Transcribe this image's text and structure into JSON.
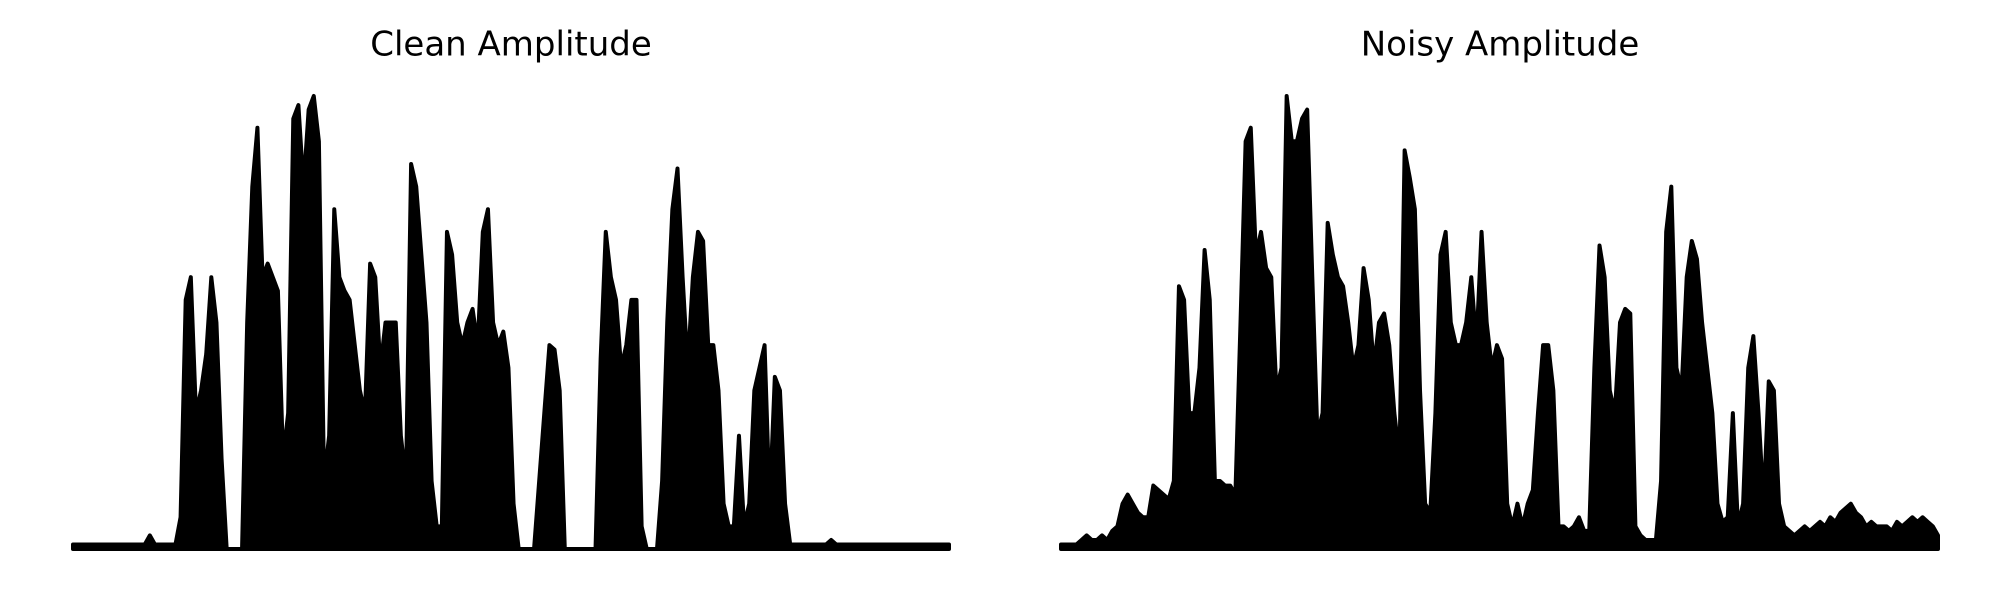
{
  "chart_data": [
    {
      "type": "area",
      "title": "Clean Amplitude",
      "color": "#000000",
      "ylim": [
        0,
        1
      ],
      "values": [
        0.01,
        0.01,
        0.01,
        0.01,
        0.01,
        0.01,
        0.01,
        0.01,
        0.01,
        0.01,
        0.01,
        0.01,
        0.01,
        0.01,
        0.01,
        0.03,
        0.01,
        0.01,
        0.01,
        0.01,
        0.01,
        0.07,
        0.55,
        0.6,
        0.3,
        0.35,
        0.43,
        0.6,
        0.5,
        0.2,
        0.0,
        0.0,
        0.0,
        0.0,
        0.5,
        0.8,
        0.93,
        0.6,
        0.63,
        0.6,
        0.57,
        0.2,
        0.3,
        0.95,
        0.98,
        0.8,
        0.97,
        1.0,
        0.9,
        0.15,
        0.25,
        0.75,
        0.6,
        0.57,
        0.55,
        0.45,
        0.35,
        0.3,
        0.63,
        0.6,
        0.4,
        0.5,
        0.5,
        0.5,
        0.25,
        0.15,
        0.85,
        0.8,
        0.65,
        0.5,
        0.15,
        0.05,
        0.05,
        0.7,
        0.65,
        0.5,
        0.45,
        0.5,
        0.53,
        0.45,
        0.7,
        0.75,
        0.5,
        0.45,
        0.48,
        0.4,
        0.1,
        0.0,
        0.0,
        0.0,
        0.0,
        0.15,
        0.3,
        0.45,
        0.44,
        0.35,
        0.0,
        0.0,
        0.0,
        0.0,
        0.0,
        0.0,
        0.0,
        0.42,
        0.7,
        0.6,
        0.55,
        0.4,
        0.45,
        0.55,
        0.55,
        0.05,
        0.0,
        0.0,
        0.0,
        0.15,
        0.5,
        0.75,
        0.84,
        0.6,
        0.4,
        0.6,
        0.7,
        0.68,
        0.45,
        0.45,
        0.35,
        0.1,
        0.05,
        0.05,
        0.25,
        0.05,
        0.1,
        0.35,
        0.4,
        0.45,
        0.1,
        0.38,
        0.35,
        0.1,
        0.01,
        0.01,
        0.01,
        0.01,
        0.01,
        0.01,
        0.01,
        0.01,
        0.02,
        0.01,
        0.01,
        0.01,
        0.01,
        0.01,
        0.01,
        0.01,
        0.01,
        0.01,
        0.01,
        0.01,
        0.01,
        0.01,
        0.01,
        0.01,
        0.01,
        0.01,
        0.01,
        0.01,
        0.01,
        0.01,
        0.01,
        0.01
      ]
    },
    {
      "type": "area",
      "title": "Noisy Amplitude",
      "color": "#000000",
      "ylim": [
        0,
        1
      ],
      "values": [
        0.01,
        0.01,
        0.01,
        0.01,
        0.02,
        0.03,
        0.02,
        0.02,
        0.03,
        0.02,
        0.04,
        0.05,
        0.1,
        0.12,
        0.1,
        0.08,
        0.07,
        0.07,
        0.14,
        0.13,
        0.12,
        0.11,
        0.15,
        0.58,
        0.55,
        0.3,
        0.3,
        0.4,
        0.66,
        0.55,
        0.15,
        0.15,
        0.14,
        0.14,
        0.12,
        0.5,
        0.9,
        0.93,
        0.65,
        0.7,
        0.62,
        0.6,
        0.35,
        0.4,
        1.0,
        0.9,
        0.9,
        0.95,
        0.97,
        0.6,
        0.25,
        0.3,
        0.72,
        0.65,
        0.6,
        0.58,
        0.5,
        0.4,
        0.45,
        0.62,
        0.55,
        0.4,
        0.5,
        0.52,
        0.45,
        0.3,
        0.2,
        0.88,
        0.82,
        0.75,
        0.35,
        0.1,
        0.08,
        0.3,
        0.65,
        0.7,
        0.5,
        0.45,
        0.45,
        0.5,
        0.6,
        0.45,
        0.7,
        0.5,
        0.4,
        0.45,
        0.42,
        0.1,
        0.05,
        0.1,
        0.05,
        0.1,
        0.13,
        0.3,
        0.45,
        0.45,
        0.35,
        0.05,
        0.05,
        0.04,
        0.05,
        0.07,
        0.04,
        0.04,
        0.4,
        0.67,
        0.6,
        0.35,
        0.3,
        0.5,
        0.53,
        0.52,
        0.05,
        0.03,
        0.02,
        0.02,
        0.02,
        0.15,
        0.7,
        0.8,
        0.4,
        0.35,
        0.6,
        0.68,
        0.64,
        0.5,
        0.4,
        0.3,
        0.1,
        0.06,
        0.07,
        0.3,
        0.05,
        0.1,
        0.4,
        0.47,
        0.3,
        0.1,
        0.37,
        0.35,
        0.1,
        0.05,
        0.04,
        0.03,
        0.04,
        0.05,
        0.04,
        0.05,
        0.06,
        0.05,
        0.07,
        0.06,
        0.08,
        0.09,
        0.1,
        0.08,
        0.07,
        0.05,
        0.06,
        0.05,
        0.05,
        0.05,
        0.04,
        0.06,
        0.05,
        0.06,
        0.07,
        0.06,
        0.07,
        0.06,
        0.05,
        0.03
      ]
    }
  ]
}
